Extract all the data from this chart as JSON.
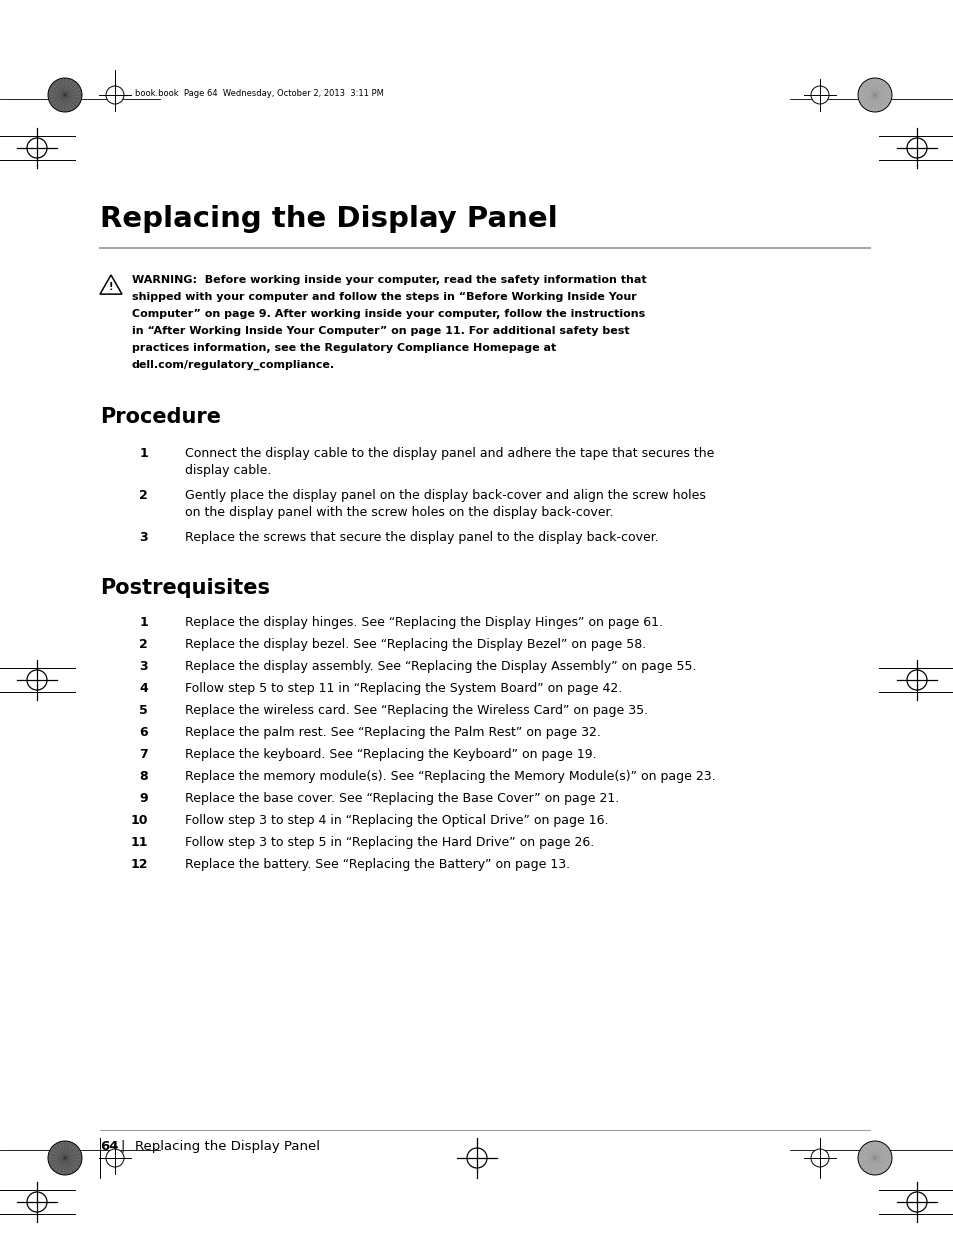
{
  "bg_color": "#ffffff",
  "header_text": "book.book  Page 64  Wednesday, October 2, 2013  3:11 PM",
  "title": "Replacing the Display Panel",
  "warning_lines": [
    "WARNING:  Before working inside your computer, read the safety information that",
    "shipped with your computer and follow the steps in “Before Working Inside Your",
    "Computer” on page 9. After working inside your computer, follow the instructions",
    "in “After Working Inside Your Computer” on page 11. For additional safety best",
    "practices information, see the Regulatory Compliance Homepage at",
    "dell.com/regulatory_compliance."
  ],
  "procedure_title": "Procedure",
  "procedure_steps": [
    [
      "Connect the display cable to the display panel and adhere the tape that secures the",
      "display cable."
    ],
    [
      "Gently place the display panel on the display back-cover and align the screw holes",
      "on the display panel with the screw holes on the display back-cover."
    ],
    [
      "Replace the screws that secure the display panel to the display back-cover."
    ]
  ],
  "postrequisites_title": "Postrequisites",
  "postrequisites_steps": [
    "Replace the display hinges. See “Replacing the Display Hinges” on page 61.",
    "Replace the display bezel. See “Replacing the Display Bezel” on page 58.",
    "Replace the display assembly. See “Replacing the Display Assembly” on page 55.",
    "Follow step 5 to step 11 in “Replacing the System Board” on page 42.",
    "Replace the wireless card. See “Replacing the Wireless Card” on page 35.",
    "Replace the palm rest. See “Replacing the Palm Rest” on page 32.",
    "Replace the keyboard. See “Replacing the Keyboard” on page 19.",
    "Replace the memory module(s). See “Replacing the Memory Module(s)” on page 23.",
    "Replace the base cover. See “Replacing the Base Cover” on page 21.",
    "Follow step 3 to step 4 in “Replacing the Optical Drive” on page 16.",
    "Follow step 3 to step 5 in “Replacing the Hard Drive” on page 26.",
    "Replace the battery. See “Replacing the Battery” on page 13."
  ],
  "footer_page_num": "64",
  "footer_text": "Replacing the Display Panel"
}
